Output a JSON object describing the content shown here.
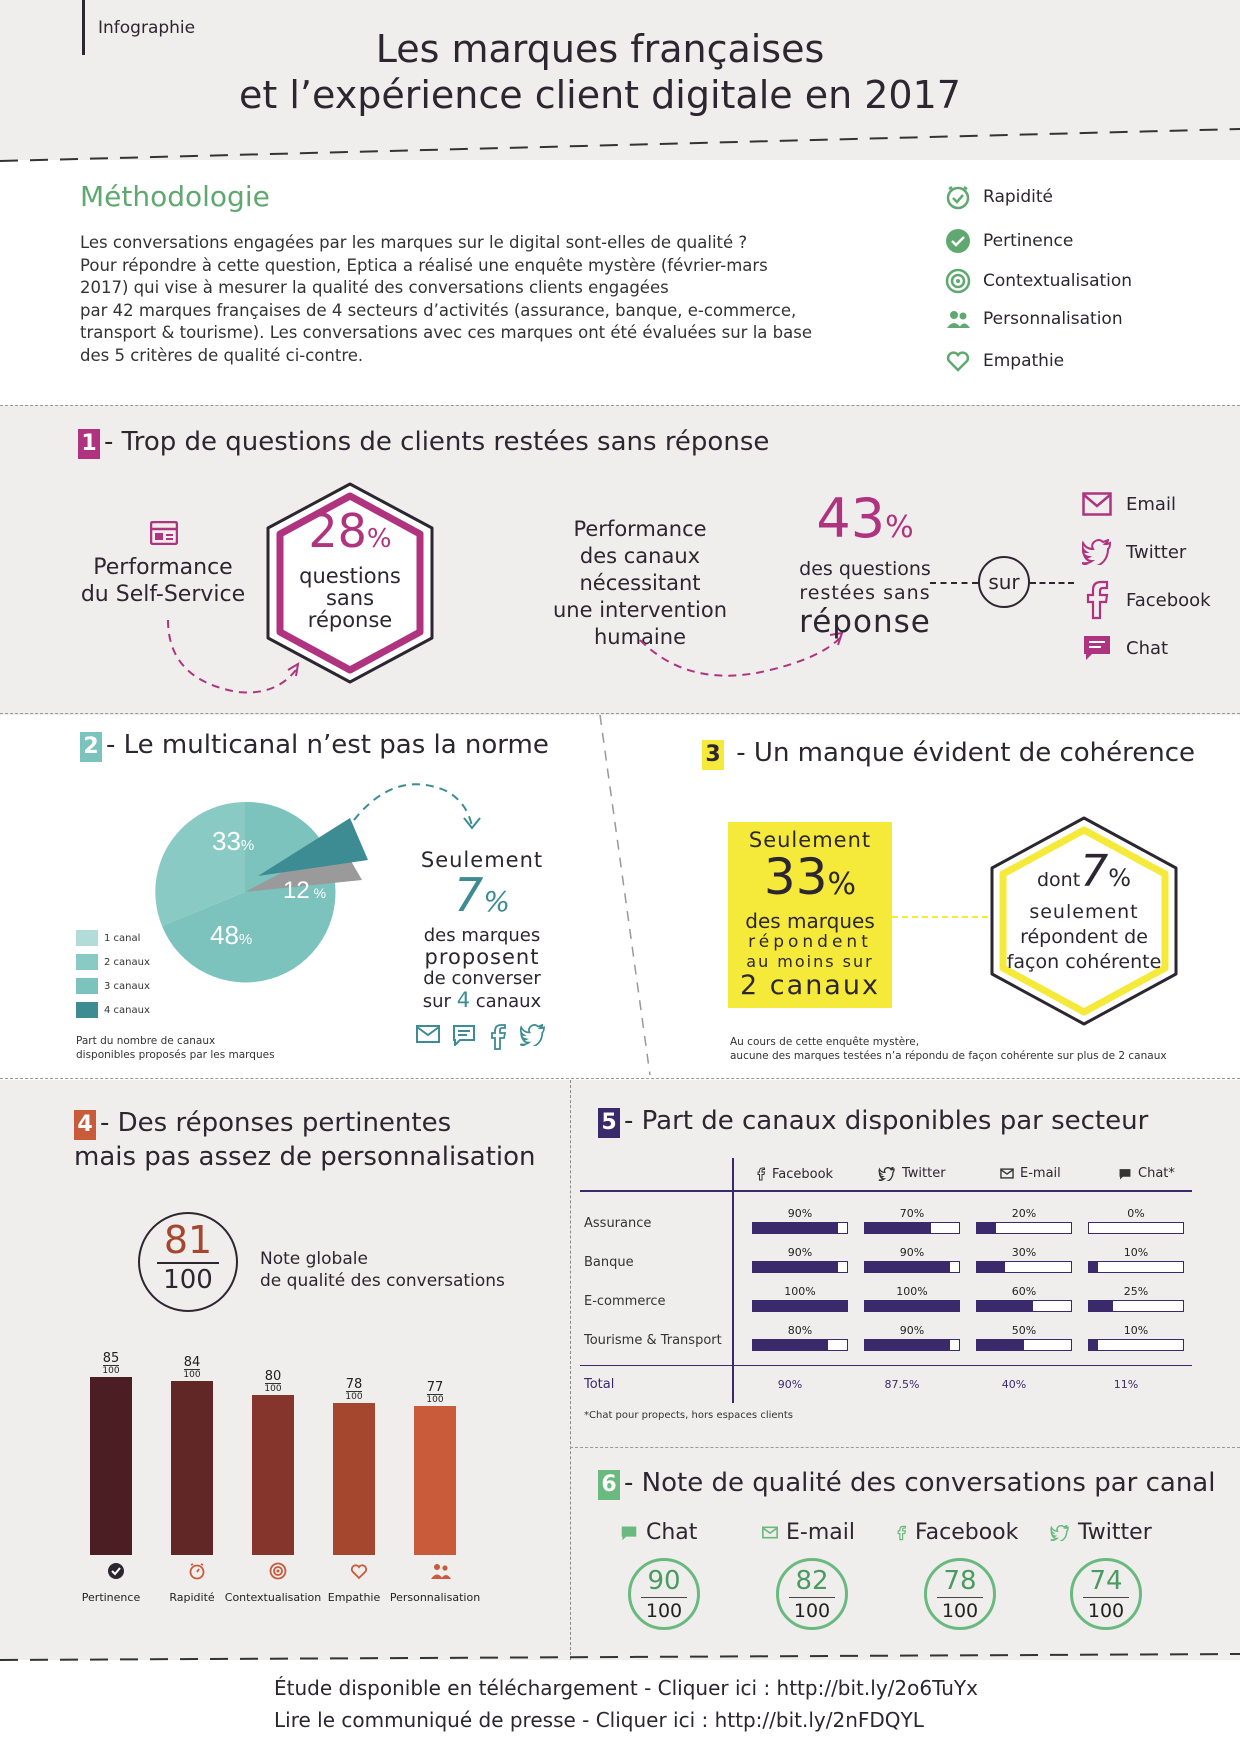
{
  "header": {
    "tag": "Infographie",
    "title_line1": "Les marques françaises",
    "title_line2": "et l’expérience client digitale en 2017"
  },
  "methodology": {
    "title": "Méthodologie",
    "text_lines": [
      "Les conversations engagées par les marques sur le digital sont-elles de qualité ?",
      "Pour répondre à cette question, Eptica a réalisé une enquête mystère (février-mars",
      "2017) qui vise à mesurer la qualité des conversations clients engagées",
      "par 42 marques françaises de 4 secteurs d’activités (assurance, banque, e-commerce,",
      "transport & tourisme). Les conversations avec ces marques ont été évaluées sur la base",
      "des 5 critères de qualité ci-contre."
    ],
    "criteria": [
      "Rapidité",
      "Pertinence",
      "Contextualisation",
      "Personnalisation",
      "Empathie"
    ]
  },
  "s1": {
    "num": "1",
    "title": "- Trop de questions de clients restées sans réponse",
    "selfservice_l1": "Performance",
    "selfservice_l2": "du Self-Service",
    "hex_value": "28",
    "hex_pct": "%",
    "hex_l1": "questions",
    "hex_l2": "sans",
    "hex_l3": "réponse",
    "human_lines": [
      "Performance",
      "des canaux",
      "nécessitant",
      "une intervention",
      "humaine"
    ],
    "big_value": "43",
    "big_pct": "%",
    "big_l1": "des questions",
    "big_l2": "restées sans",
    "big_l3": "réponse",
    "sur": "sur",
    "channels": [
      "Email",
      "Twitter",
      "Facebook",
      "Chat"
    ]
  },
  "s2": {
    "num": "2",
    "title": "- Le multicanal n’est pas la norme",
    "legend": [
      "1 canal",
      "2 canaux",
      "3 canaux",
      "4 canaux"
    ],
    "footnote_l1": "Part du nombre de canaux",
    "footnote_l2": "disponibles proposés par les marques",
    "seulement": "Seulement",
    "value7": "7",
    "pct": "%",
    "text_l1": "des marques",
    "text_l2": "proposent",
    "text_l3": "de converser",
    "text_l4a": "sur ",
    "text_l4b": "4",
    "text_l4c": " canaux"
  },
  "s3": {
    "num": "3",
    "title": " - Un manque évident de cohérence",
    "box_l1": "Seulement",
    "box_val": "33",
    "box_pct": "%",
    "box_l2": "des marques",
    "box_l3": "répondent",
    "box_l4": "au moins sur",
    "box_l5": "2 canaux",
    "hex_dont": "dont",
    "hex_val": "7",
    "hex_pct": "%",
    "hex_l1": "seulement",
    "hex_l2": "répondent de",
    "hex_l3": "façon cohérente",
    "note_l1": "Au cours de cette enquête mystère,",
    "note_l2": "aucune des marques testées n’a répondu de façon cohérente sur plus de 2 canaux"
  },
  "s4": {
    "num": "4",
    "title_l1": "- Des réponses pertinentes",
    "title_l2": "mais pas assez de personnalisation",
    "global_score": "81",
    "global_den": "100",
    "global_l1": "Note globale",
    "global_l2": "de qualité des conversations",
    "bars": [
      {
        "label": "Pertinence",
        "value": "85",
        "den": "100",
        "score": 85,
        "color": "#4a1e22"
      },
      {
        "label": "Rapidité",
        "value": "84",
        "den": "100",
        "score": 84,
        "color": "#602726"
      },
      {
        "label": "Contextualisation",
        "value": "80",
        "den": "100",
        "score": 80,
        "color": "#86352c"
      },
      {
        "label": "Empathie",
        "value": "78",
        "den": "100",
        "score": 78,
        "color": "#a5462f"
      },
      {
        "label": "Personnalisation",
        "value": "77",
        "den": "100",
        "score": 77,
        "color": "#c95b3a"
      }
    ]
  },
  "s5": {
    "num": "5",
    "title": "- Part de canaux disponibles par secteur",
    "headers": [
      "Facebook",
      "Twitter",
      "E-mail",
      "Chat*"
    ],
    "rows": [
      {
        "sector": "Assurance",
        "values": [
          "90%",
          "70%",
          "20%",
          "0%"
        ],
        "nums": [
          90,
          70,
          20,
          0
        ]
      },
      {
        "sector": "Banque",
        "values": [
          "90%",
          "90%",
          "30%",
          "10%"
        ],
        "nums": [
          90,
          90,
          30,
          10
        ]
      },
      {
        "sector": "E-commerce",
        "values": [
          "100%",
          "100%",
          "60%",
          "25%"
        ],
        "nums": [
          100,
          100,
          60,
          25
        ]
      },
      {
        "sector": "Tourisme & Transport",
        "values": [
          "80%",
          "90%",
          "50%",
          "10%"
        ],
        "nums": [
          80,
          90,
          50,
          10
        ]
      }
    ],
    "total_label": "Total",
    "totals": [
      "90%",
      "87.5%",
      "40%",
      "11%"
    ],
    "footnote": "*Chat pour propects, hors espaces clients"
  },
  "s6": {
    "num": "6",
    "title": "- Note de qualité des conversations par canal",
    "channels": [
      {
        "label": "Chat",
        "score": "90",
        "den": "100"
      },
      {
        "label": "E-mail",
        "score": "82",
        "den": "100"
      },
      {
        "label": "Facebook",
        "score": "78",
        "den": "100"
      },
      {
        "label": "Twitter",
        "score": "74",
        "den": "100"
      }
    ]
  },
  "footer": {
    "line1": "Étude disponible en téléchargement - Cliquer ici :  http://bit.ly/2o6TuYx",
    "line2": "Lire le communiqué de presse - Cliquer ici :  http://bit.ly/2nFDQYL"
  },
  "colors": {
    "magenta": "#b0337f",
    "teal": "#7cc2bd",
    "teal_dark": "#3d8b93",
    "yellow": "#f5ea3a",
    "green": "#5fa86f",
    "purple": "#3b2a6b"
  }
}
